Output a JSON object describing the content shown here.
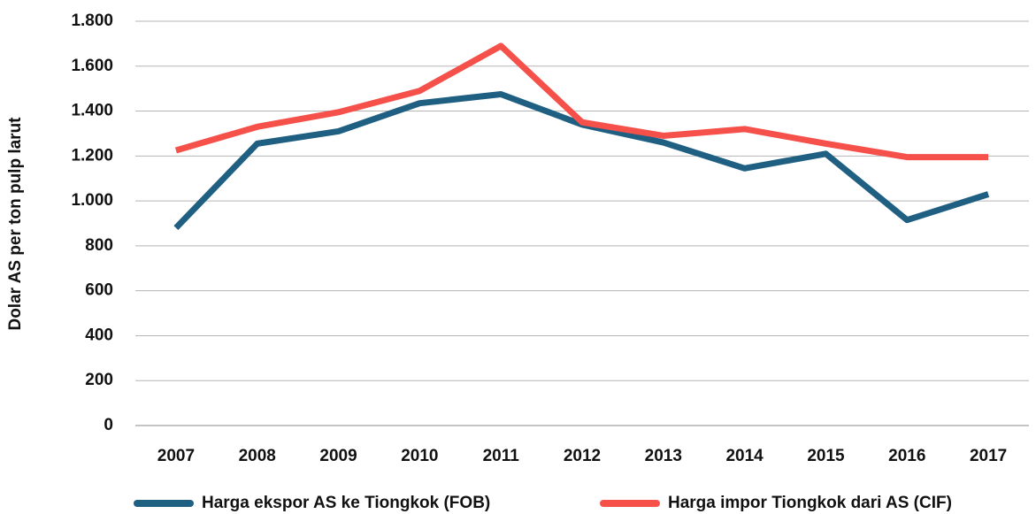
{
  "chart_data": {
    "type": "line",
    "y_label": "Dolar AS per ton pulp larut",
    "categories": [
      "2007",
      "2008",
      "2009",
      "2010",
      "2011",
      "2012",
      "2013",
      "2014",
      "2015",
      "2016",
      "2017"
    ],
    "series": [
      {
        "name": "Harga ekspor AS ke Tiongkok (FOB)",
        "color": "#1f5f82",
        "values": [
          880,
          1255,
          1310,
          1435,
          1475,
          1340,
          1260,
          1145,
          1210,
          915,
          1030
        ]
      },
      {
        "name": "Harga impor Tiongkok dari AS (CIF)",
        "color": "#f5504a",
        "values": [
          1225,
          1330,
          1395,
          1490,
          1690,
          1350,
          1290,
          1320,
          1255,
          1195,
          1195
        ]
      }
    ],
    "ylim": [
      0,
      1800
    ],
    "yticks": [
      0,
      200,
      400,
      600,
      800,
      {
        "value": 1000,
        "label": "1.000"
      },
      {
        "value": 1200,
        "label": "1.200"
      },
      {
        "value": 1400,
        "label": "1.400"
      },
      {
        "value": 1600,
        "label": "1.600"
      },
      {
        "value": 1800,
        "label": "1.800"
      }
    ],
    "grid": true,
    "legend": "bottom"
  }
}
